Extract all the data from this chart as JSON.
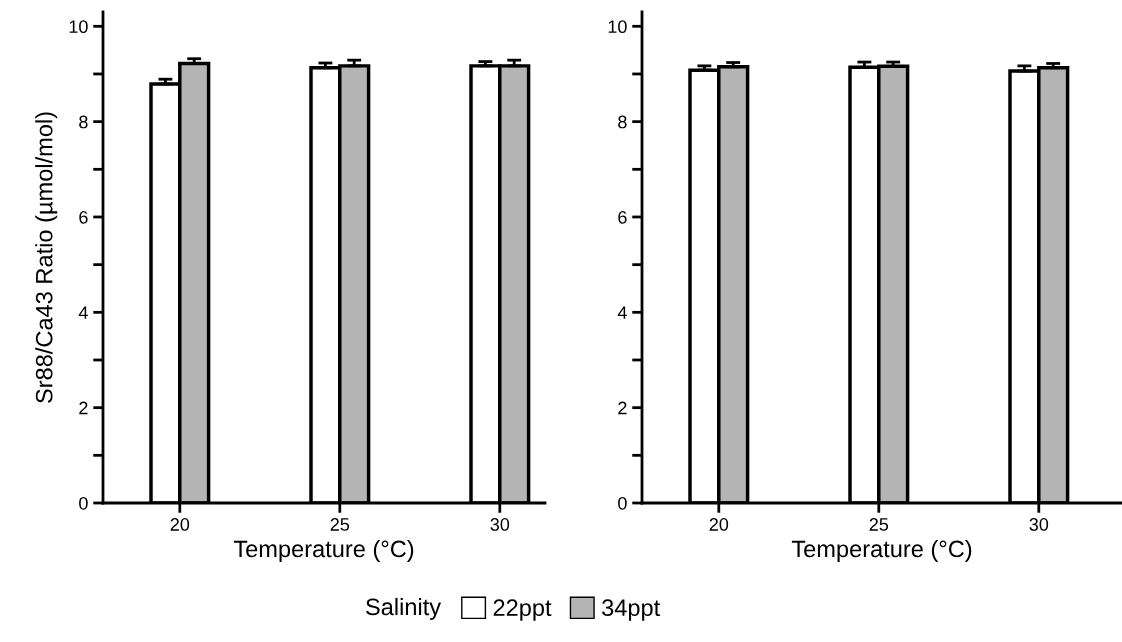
{
  "chart_data": [
    {
      "type": "bar",
      "categories": [
        "20",
        "25",
        "30"
      ],
      "xlabel": "Temperature (°C)",
      "ylabel": "Sr88/Ca43 Ratio (µmol/mol)",
      "ylim": [
        0,
        10.3
      ],
      "yticks": [
        0,
        {
          "value": 1,
          "label": null
        },
        2,
        {
          "value": 3,
          "label": null
        },
        4,
        {
          "value": 5,
          "label": null
        },
        6,
        {
          "value": 7,
          "label": null
        },
        8,
        {
          "value": 9,
          "label": null
        },
        10
      ],
      "legend": "bottom",
      "legend_title": "Salinity",
      "grid": false,
      "series": [
        {
          "name": "22ppt",
          "color": "#ffffff",
          "values": [
            8.79,
            9.13,
            9.17
          ],
          "errors": [
            0.1,
            0.1,
            0.09
          ]
        },
        {
          "name": "34ppt",
          "color": "#b4b4b4",
          "values": [
            9.22,
            9.17,
            9.17
          ],
          "errors": [
            0.1,
            0.12,
            0.12
          ]
        }
      ]
    },
    {
      "type": "bar",
      "categories": [
        "20",
        "25",
        "30"
      ],
      "xlabel": "Temperature (°C)",
      "ylim": [
        0,
        10.3
      ],
      "yticks": [
        0,
        {
          "value": 1,
          "label": null
        },
        2,
        {
          "value": 3,
          "label": null
        },
        4,
        {
          "value": 5,
          "label": null
        },
        6,
        {
          "value": 7,
          "label": null
        },
        8,
        {
          "value": 9,
          "label": null
        },
        10
      ],
      "grid": false,
      "series": [
        {
          "color": "#ffffff",
          "values": [
            9.08,
            9.14,
            9.06
          ],
          "errors": [
            0.09,
            0.11,
            0.11
          ]
        },
        {
          "color": "#b4b4b4",
          "values": [
            9.15,
            9.16,
            9.13
          ],
          "errors": [
            0.09,
            0.09,
            0.09
          ]
        }
      ]
    }
  ]
}
